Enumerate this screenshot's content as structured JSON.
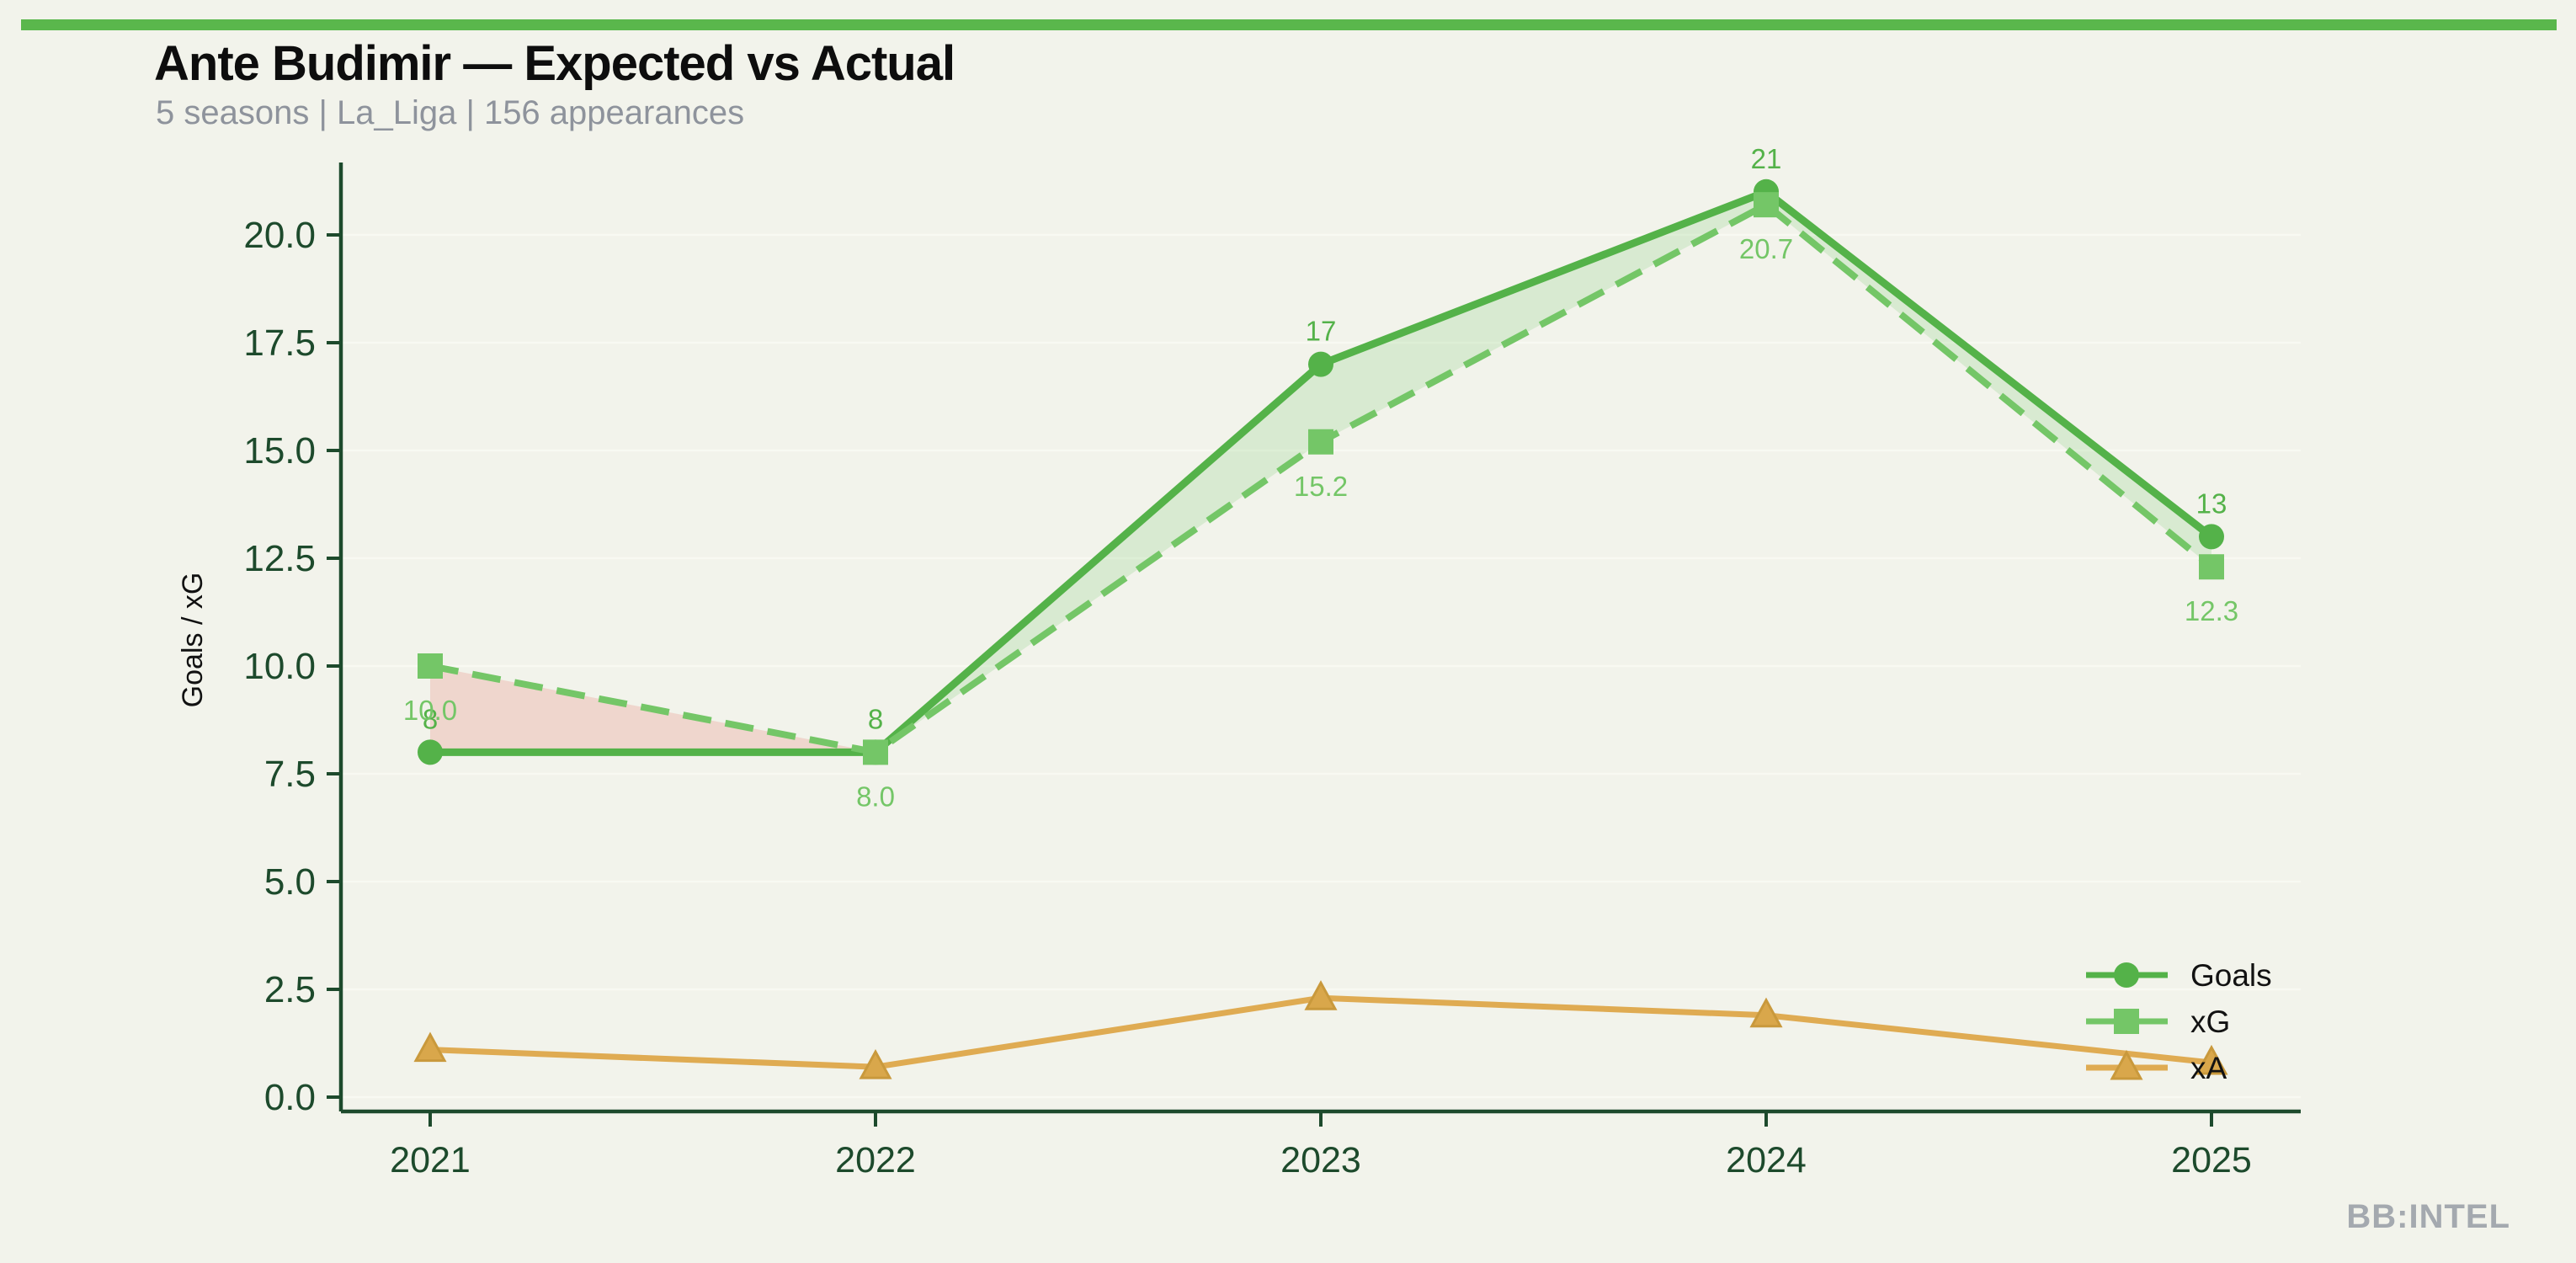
{
  "header": {
    "title": "Ante Budimir — Expected vs Actual",
    "subtitle": "5 seasons | La_Liga | 156 appearances"
  },
  "footer": {
    "watermark": "BB:INTEL"
  },
  "colors": {
    "background": "#f2f3eb",
    "accent_bar": "#5ab74c",
    "goals": "#54b249",
    "xg": "#74c667",
    "xa_line": "#dfab52",
    "xa_fill": "#d9a74b",
    "xa_edge": "#c9993c",
    "axis": "#1d4a2c",
    "gridline": "#f8f9f2",
    "ylabel_text": "#111111",
    "legend_text": "#121212",
    "fill_goals_over_xg": "#74c667",
    "fill_xg_over_goals": "#e57364",
    "subtitle_gray": "#8e939c",
    "watermark_gray": "#a4a9af"
  },
  "chart_data": {
    "type": "line",
    "title": "Ante Budimir — Expected vs Actual",
    "subtitle": "5 seasons | La_Liga | 156 appearances",
    "x": [
      2021,
      2022,
      2023,
      2024,
      2025
    ],
    "xtick_labels": [
      "2021",
      "2022",
      "2023",
      "2024",
      "2025"
    ],
    "series": [
      {
        "name": "Goals",
        "values": [
          8,
          8,
          17,
          21,
          13
        ],
        "labels": [
          "8",
          "8",
          "17",
          "21",
          "13"
        ],
        "marker": "circle",
        "line_style": "solid"
      },
      {
        "name": "xG",
        "values": [
          10.0,
          8.0,
          15.2,
          20.7,
          12.3
        ],
        "labels": [
          "10.0",
          "8.0",
          "15.2",
          "20.7",
          "12.3"
        ],
        "marker": "square",
        "line_style": "dashed"
      },
      {
        "name": "xA",
        "values": [
          1.1,
          0.7,
          2.3,
          1.9,
          0.8
        ],
        "labels": [],
        "marker": "triangle",
        "line_style": "solid"
      }
    ],
    "xlabel": "",
    "ylabel": "Goals / xG",
    "yticks": [
      0.0,
      2.5,
      5.0,
      7.5,
      10.0,
      12.5,
      15.0,
      17.5,
      20.0
    ],
    "ytick_labels": [
      "0.0",
      "2.5",
      "5.0",
      "7.5",
      "10.0",
      "12.5",
      "15.0",
      "17.5",
      "20.0"
    ],
    "ylim": [
      -0.35,
      21.7
    ],
    "grid": "horizontal-only",
    "shading": "area between Goals and xG: green where Goals > xG (2022-2025), red where xG > Goals (2021-2022)",
    "legend": {
      "position": "lower right",
      "frame": false,
      "entries": [
        "Goals",
        "xG",
        "xA"
      ]
    }
  }
}
